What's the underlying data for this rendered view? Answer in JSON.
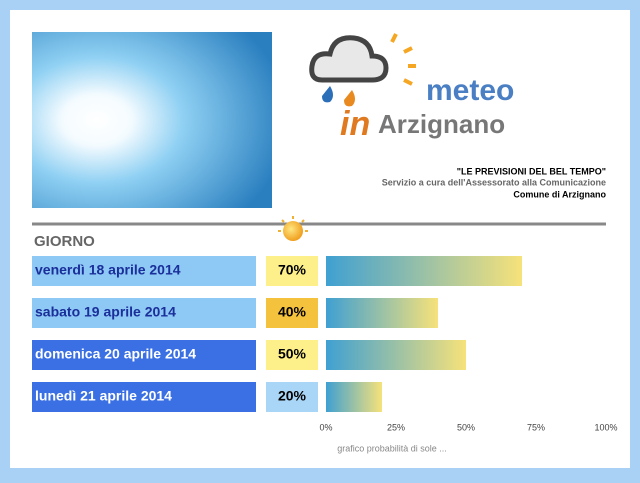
{
  "header": {
    "logo_meteo": "meteo",
    "logo_in": "in",
    "logo_place": "Arzignano",
    "tagline": "\"LE PREVISIONI DEL BEL TEMPO\"",
    "service": "Servizio a cura dell'Assessorato alla Comunicazione",
    "municipality": "Comune di Arzignano"
  },
  "chart_data": {
    "type": "bar",
    "category_label": "GIORNO",
    "x_label": "grafico probabilità di sole ...",
    "categories": [
      "venerdì 18 aprile 2014",
      "sabato 19 aprile 2014",
      "domenica 20 aprile 2014",
      "lunedì 21 aprile 2014"
    ],
    "values": [
      70,
      40,
      50,
      20
    ],
    "value_labels": [
      "70%",
      "40%",
      "50%",
      "20%"
    ],
    "xlim": [
      0,
      100
    ],
    "xticks": [
      {
        "value": 0,
        "label": "0%"
      },
      {
        "value": 25,
        "label": "25%"
      },
      {
        "value": 50,
        "label": "50%"
      },
      {
        "value": 75,
        "label": "75%"
      },
      {
        "value": 100,
        "label": "100%"
      }
    ]
  }
}
